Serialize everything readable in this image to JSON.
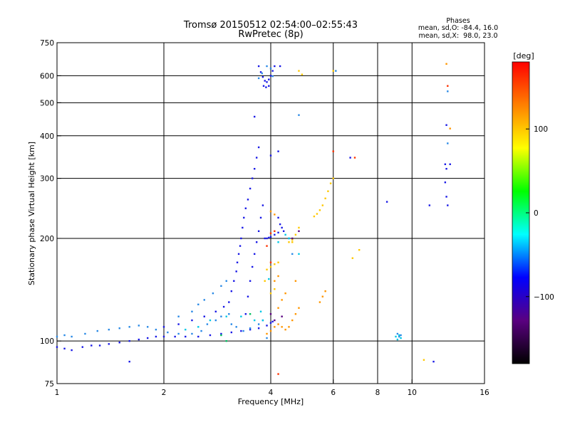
{
  "header": {
    "title_line1": "Tromsø 20150512 02:54:00–02:55:43",
    "title_line2": "RwPretec (8p)",
    "stats_heading": "Phases",
    "stats_line_o": "mean, sd,O: -84.4, 16.0",
    "stats_line_x": "mean, sd,X:  98.0, 23.0"
  },
  "chart_data": {
    "type": "scatter",
    "xlabel": "Frequency [MHz]",
    "ylabel": "Stationary phase Virtual Height [km]",
    "x_scale": "log",
    "y_scale": "log",
    "xlim": [
      1,
      16
    ],
    "ylim": [
      75,
      750
    ],
    "x_ticks": [
      1,
      2,
      4,
      6,
      8,
      10,
      16
    ],
    "x_gridlines": [
      2,
      4,
      6,
      8,
      10
    ],
    "y_ticks": [
      75,
      100,
      200,
      300,
      400,
      500,
      600,
      750
    ],
    "y_gridlines": [
      100,
      200,
      300,
      400,
      500,
      600
    ],
    "grid": true,
    "colorbar": {
      "label": "[deg]",
      "range": [
        -180,
        180
      ],
      "ticks": [
        -100,
        0,
        100
      ],
      "colors": [
        "#000000",
        "#5a0080",
        "#0000ff",
        "#00ffff",
        "#00ff00",
        "#ffff00",
        "#ff8000",
        "#ff0000"
      ]
    },
    "series": [
      {
        "color": "#1a1ae6",
        "points": [
          [
            1.0,
            96
          ],
          [
            1.05,
            95
          ],
          [
            1.1,
            94
          ],
          [
            1.18,
            96
          ],
          [
            1.25,
            97
          ],
          [
            1.32,
            97
          ],
          [
            1.4,
            98
          ],
          [
            1.5,
            99
          ],
          [
            1.6,
            100
          ],
          [
            1.7,
            101
          ],
          [
            1.8,
            102
          ],
          [
            1.9,
            103
          ],
          [
            2.0,
            103
          ],
          [
            2.15,
            103
          ],
          [
            2.3,
            103
          ],
          [
            2.5,
            103
          ],
          [
            2.7,
            104
          ],
          [
            2.9,
            105
          ],
          [
            3.1,
            106
          ],
          [
            3.3,
            107
          ],
          [
            3.5,
            108
          ],
          [
            3.7,
            109
          ],
          [
            3.9,
            111
          ],
          [
            4.0,
            113
          ],
          [
            4.05,
            114
          ],
          [
            2.0,
            110
          ],
          [
            2.2,
            112
          ],
          [
            2.4,
            115
          ],
          [
            2.6,
            118
          ],
          [
            2.8,
            122
          ],
          [
            2.95,
            126
          ],
          [
            3.05,
            130
          ],
          [
            3.1,
            140
          ],
          [
            3.15,
            150
          ],
          [
            3.2,
            160
          ],
          [
            3.22,
            170
          ],
          [
            3.25,
            180
          ],
          [
            3.28,
            190
          ],
          [
            3.3,
            200
          ],
          [
            3.33,
            215
          ],
          [
            3.36,
            230
          ],
          [
            3.4,
            245
          ],
          [
            3.45,
            260
          ],
          [
            3.5,
            280
          ],
          [
            3.55,
            300
          ],
          [
            3.6,
            320
          ],
          [
            3.65,
            345
          ],
          [
            3.7,
            370
          ],
          [
            3.4,
            120
          ],
          [
            3.45,
            135
          ],
          [
            3.5,
            150
          ],
          [
            3.55,
            165
          ],
          [
            3.6,
            180
          ],
          [
            3.65,
            195
          ],
          [
            3.7,
            210
          ],
          [
            3.75,
            230
          ],
          [
            3.8,
            250
          ],
          [
            3.85,
            200
          ],
          [
            3.9,
            200
          ],
          [
            3.95,
            201
          ],
          [
            4.0,
            202
          ],
          [
            4.1,
            205
          ],
          [
            4.2,
            208
          ],
          [
            4.2,
            230
          ],
          [
            4.25,
            220
          ],
          [
            4.3,
            215
          ],
          [
            4.35,
            210
          ],
          [
            3.7,
            640
          ],
          [
            3.75,
            615
          ],
          [
            3.8,
            595
          ],
          [
            3.85,
            580
          ],
          [
            3.9,
            575
          ],
          [
            3.95,
            585
          ],
          [
            4.0,
            600
          ],
          [
            4.05,
            620
          ],
          [
            4.1,
            640
          ],
          [
            3.82,
            560
          ],
          [
            3.88,
            555
          ],
          [
            3.95,
            560
          ],
          [
            4.25,
            640
          ],
          [
            3.6,
            455
          ],
          [
            4.0,
            350
          ],
          [
            4.2,
            360
          ],
          [
            6.7,
            345
          ],
          [
            8.5,
            256
          ],
          [
            11.2,
            250
          ],
          [
            12.4,
            292
          ],
          [
            12.5,
            265
          ],
          [
            12.6,
            250
          ],
          [
            12.4,
            330
          ],
          [
            12.5,
            320
          ],
          [
            12.5,
            430
          ],
          [
            12.8,
            330
          ],
          [
            11.5,
            87
          ],
          [
            1.6,
            87
          ]
        ]
      },
      {
        "color": "#2a8ae6",
        "points": [
          [
            1.0,
            103
          ],
          [
            1.05,
            104
          ],
          [
            1.1,
            103
          ],
          [
            1.2,
            105
          ],
          [
            1.3,
            107
          ],
          [
            1.4,
            108
          ],
          [
            1.5,
            109
          ],
          [
            1.6,
            110
          ],
          [
            1.7,
            111
          ],
          [
            1.8,
            110
          ],
          [
            1.9,
            108
          ],
          [
            2.05,
            106
          ],
          [
            2.2,
            105
          ],
          [
            2.4,
            105
          ],
          [
            2.55,
            107
          ],
          [
            2.65,
            112
          ],
          [
            2.8,
            115
          ],
          [
            2.9,
            118
          ],
          [
            3.05,
            120
          ],
          [
            3.1,
            112
          ],
          [
            3.2,
            110
          ],
          [
            3.35,
            107
          ],
          [
            3.5,
            109
          ],
          [
            3.7,
            112
          ],
          [
            3.8,
            115
          ],
          [
            2.2,
            118
          ],
          [
            2.4,
            122
          ],
          [
            2.5,
            128
          ],
          [
            2.6,
            132
          ],
          [
            2.75,
            138
          ],
          [
            2.9,
            145
          ],
          [
            3.0,
            150
          ],
          [
            3.7,
            590
          ],
          [
            3.78,
            610
          ],
          [
            3.9,
            640
          ],
          [
            4.0,
            630
          ],
          [
            4.05,
            598
          ],
          [
            4.5,
            200
          ],
          [
            4.6,
            180
          ],
          [
            4.8,
            460
          ],
          [
            6.1,
            620
          ],
          [
            9.1,
            105
          ],
          [
            9.2,
            103
          ],
          [
            9.3,
            104
          ],
          [
            12.6,
            540
          ],
          [
            12.6,
            380
          ],
          [
            3.9,
            102
          ]
        ]
      },
      {
        "color": "#00c8e6",
        "points": [
          [
            2.3,
            108
          ],
          [
            2.5,
            110
          ],
          [
            2.7,
            115
          ],
          [
            3.0,
            118
          ],
          [
            3.3,
            118
          ],
          [
            3.6,
            115
          ],
          [
            3.75,
            122
          ],
          [
            3.8,
            115
          ],
          [
            3.95,
            152
          ],
          [
            4.2,
            195
          ],
          [
            4.4,
            205
          ],
          [
            4.5,
            200
          ],
          [
            4.8,
            180
          ],
          [
            9.0,
            103
          ],
          [
            9.1,
            101
          ],
          [
            9.2,
            104
          ],
          [
            9.3,
            102
          ]
        ]
      },
      {
        "color": "#00c060",
        "points": [
          [
            3.0,
            100
          ],
          [
            2.9,
            104
          ],
          [
            3.5,
            120
          ]
        ]
      },
      {
        "color": "#ffc800",
        "points": [
          [
            3.9,
            162
          ],
          [
            4.0,
            165
          ],
          [
            4.1,
            168
          ],
          [
            4.2,
            170
          ],
          [
            3.85,
            150
          ],
          [
            4.0,
            138
          ],
          [
            4.1,
            142
          ],
          [
            4.5,
            195
          ],
          [
            4.6,
            198
          ],
          [
            4.7,
            205
          ],
          [
            4.8,
            215
          ],
          [
            5.3,
            232
          ],
          [
            5.4,
            236
          ],
          [
            5.5,
            242
          ],
          [
            5.6,
            250
          ],
          [
            5.7,
            262
          ],
          [
            5.8,
            275
          ],
          [
            5.9,
            290
          ],
          [
            6.0,
            300
          ],
          [
            4.8,
            620
          ],
          [
            4.9,
            605
          ],
          [
            6.0,
            620
          ],
          [
            7.1,
            185
          ],
          [
            6.8,
            175
          ],
          [
            10.8,
            88
          ],
          [
            4.6,
            195
          ]
        ]
      },
      {
        "color": "#ff9600",
        "points": [
          [
            3.9,
            105
          ],
          [
            4.0,
            107
          ],
          [
            4.1,
            110
          ],
          [
            4.2,
            112
          ],
          [
            4.3,
            110
          ],
          [
            4.4,
            108
          ],
          [
            4.5,
            110
          ],
          [
            4.6,
            115
          ],
          [
            4.7,
            120
          ],
          [
            4.8,
            125
          ],
          [
            5.5,
            130
          ],
          [
            5.6,
            135
          ],
          [
            5.7,
            140
          ],
          [
            4.2,
            125
          ],
          [
            4.3,
            132
          ],
          [
            4.4,
            138
          ],
          [
            4.1,
            150
          ],
          [
            4.2,
            155
          ],
          [
            4.0,
            240
          ],
          [
            4.1,
            235
          ],
          [
            12.5,
            650
          ],
          [
            12.8,
            420
          ],
          [
            4.7,
            150
          ]
        ]
      },
      {
        "color": "#ff3200",
        "points": [
          [
            4.0,
            207
          ],
          [
            4.1,
            210
          ],
          [
            6.0,
            360
          ],
          [
            6.9,
            345
          ],
          [
            12.6,
            560
          ],
          [
            4.2,
            80
          ],
          [
            3.9,
            190
          ],
          [
            4.0,
            170
          ]
        ]
      },
      {
        "color": "#5a0080",
        "points": [
          [
            4.1,
            115
          ],
          [
            4.3,
            118
          ],
          [
            4.6,
            200
          ],
          [
            4.8,
            210
          ],
          [
            4.0,
            120
          ]
        ]
      }
    ]
  }
}
